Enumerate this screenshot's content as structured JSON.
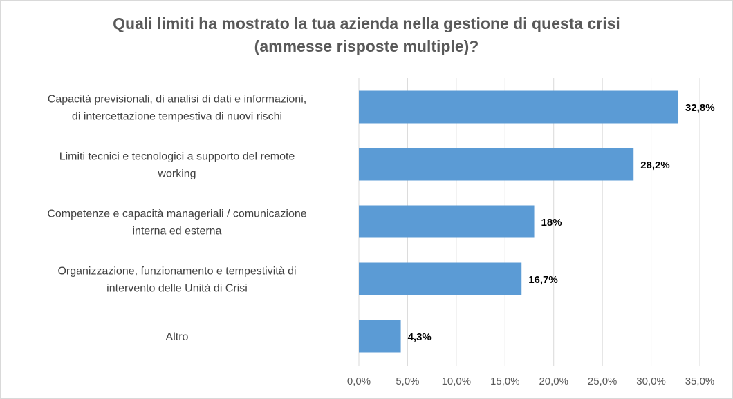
{
  "chart_data": {
    "type": "bar",
    "orientation": "horizontal",
    "title_lines": [
      "Quali limiti ha mostrato la tua azienda nella gestione di questa crisi",
      "(ammesse risposte multiple)?"
    ],
    "categories": [
      [
        "Capacità previsionali, di analisi di dati e informazioni,",
        "di intercettazione tempestiva di nuovi rischi"
      ],
      [
        "Limiti tecnici e tecnologici a supporto del remote",
        "working"
      ],
      [
        "Competenze e capacità manageriali / comunicazione",
        "interna ed esterna"
      ],
      [
        "Organizzazione, funzionamento e tempestività di",
        "intervento delle Unità di Crisi"
      ],
      [
        "Altro"
      ]
    ],
    "values": [
      32.8,
      28.2,
      18,
      16.7,
      4.3
    ],
    "data_labels": [
      "32,8%",
      "28,2%",
      "18%",
      "16,7%",
      "4,3%"
    ],
    "xlim": [
      0,
      35
    ],
    "xticks": [
      0,
      5,
      10,
      15,
      20,
      25,
      30,
      35
    ],
    "xtick_labels": [
      "0,0%",
      "5,0%",
      "10,0%",
      "15,0%",
      "20,0%",
      "25,0%",
      "30,0%",
      "35,0%"
    ],
    "grid": "vertical",
    "legend": "none",
    "bar_color": "#5B9BD5"
  }
}
